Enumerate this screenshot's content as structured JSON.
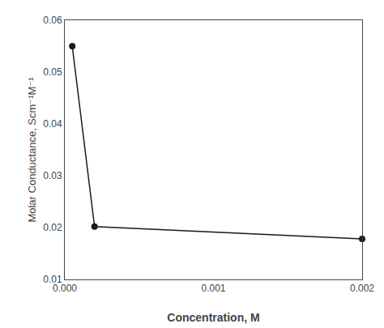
{
  "chart_data": {
    "type": "line",
    "x": [
      5e-05,
      0.0002,
      0.002
    ],
    "values": [
      0.055,
      0.0202,
      0.0178
    ],
    "color": "#1a1a1a",
    "marker": "circle",
    "xlabel": "Concentration, M",
    "ylabel": "Molar Conductance, Scm⁻¹M⁻¹",
    "xlim": [
      0,
      0.002
    ],
    "ylim": [
      0.01,
      0.06
    ],
    "xticks": [
      {
        "value": 0,
        "label": "0.000"
      },
      0.001,
      0.002
    ],
    "yticks": [
      0.01,
      0.02,
      0.03,
      0.04,
      0.05,
      0.06
    ],
    "grid": false
  }
}
